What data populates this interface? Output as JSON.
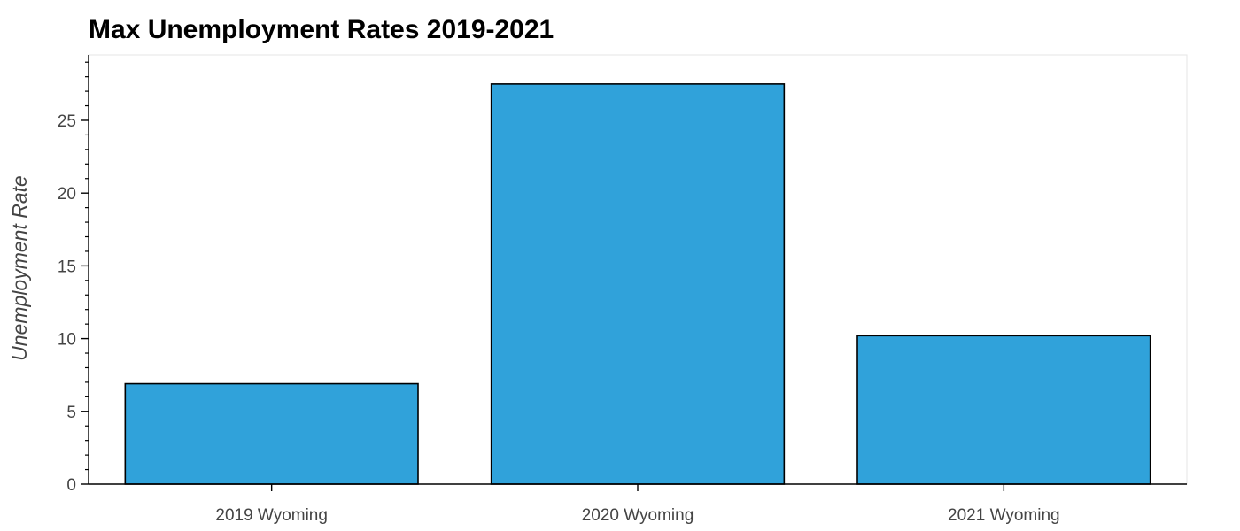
{
  "chart_data": {
    "type": "bar",
    "title": "Max Unemployment Rates 2019-2021",
    "xlabel": "",
    "ylabel": "Unemployment Rate",
    "categories": [
      "2019 Wyoming",
      "2020 Wyoming",
      "2021 Wyoming"
    ],
    "values": [
      6.9,
      27.5,
      10.2
    ],
    "ylim": [
      0,
      29.5
    ],
    "yticks": [
      0,
      5,
      10,
      15,
      20,
      25
    ],
    "grid": false,
    "legend": "none",
    "bar_color": "#30a2da",
    "bar_edge_color": "#000000"
  }
}
